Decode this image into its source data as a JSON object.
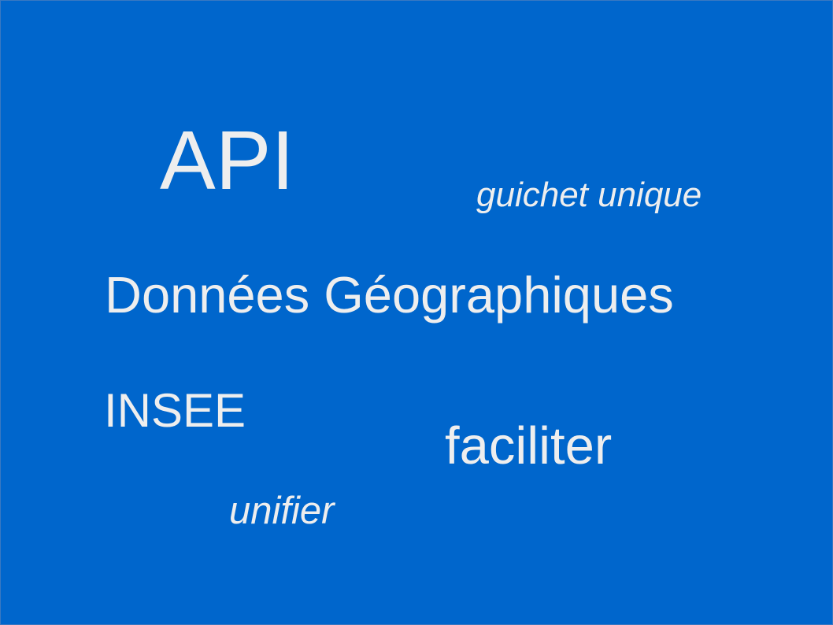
{
  "slide": {
    "background_color": "#0066cc",
    "text_color": "#eeeeee",
    "words": {
      "api": "API",
      "guichet_unique": "guichet unique",
      "donnees_geographiques": "Données Géographiques",
      "insee": "INSEE",
      "faciliter": "faciliter",
      "unifier": "unifier"
    }
  }
}
